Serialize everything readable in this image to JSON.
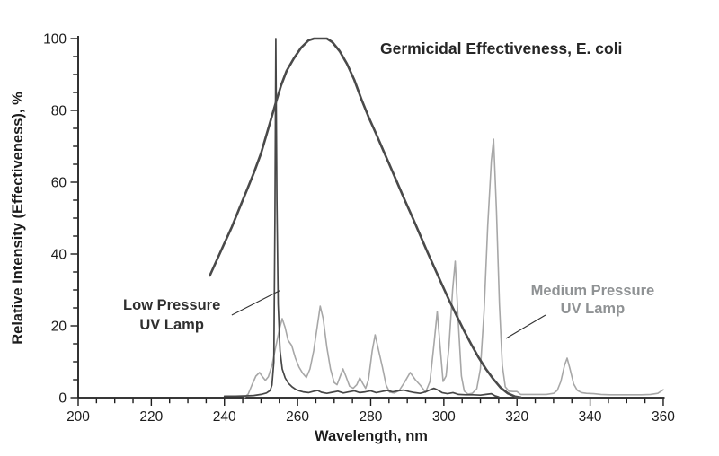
{
  "chart_data": {
    "type": "line",
    "title": "Germicidal Effectiveness, E. coli",
    "xlabel": "Wavelength, nm",
    "ylabel": "Relative Intensity (Effectiveness), %",
    "xlim": [
      200,
      360
    ],
    "ylim": [
      0,
      100
    ],
    "x_major_ticks": [
      200,
      220,
      240,
      260,
      280,
      300,
      320,
      340,
      360
    ],
    "x_minor_step": 5,
    "y_major_ticks": [
      0,
      20,
      40,
      60,
      80,
      100
    ],
    "y_minor_step": 5,
    "grid": false,
    "legend_position": "inline-annotations",
    "axis_color": "#1c1c1c",
    "series": [
      {
        "key": "medium-pressure-lamp",
        "name": "Medium Pressure UV Lamp",
        "color": "#a7a7a7",
        "stroke_width": 1.6,
        "points": [
          [
            245.5,
            0.1
          ],
          [
            246.5,
            1
          ],
          [
            247.5,
            3.5
          ],
          [
            248.6,
            6
          ],
          [
            249.6,
            7
          ],
          [
            250.4,
            5.8
          ],
          [
            251.2,
            4.8
          ],
          [
            252,
            5.8
          ],
          [
            253,
            9
          ],
          [
            254,
            14
          ],
          [
            255,
            19
          ],
          [
            255.8,
            22
          ],
          [
            256.6,
            19.5
          ],
          [
            257.4,
            16
          ],
          [
            258.4,
            14.5
          ],
          [
            259.4,
            11
          ],
          [
            260.4,
            8.5
          ],
          [
            261.4,
            6.8
          ],
          [
            262.4,
            5.6
          ],
          [
            263.4,
            8
          ],
          [
            264.4,
            13
          ],
          [
            265.4,
            20
          ],
          [
            266.2,
            25.5
          ],
          [
            267,
            22
          ],
          [
            268,
            14
          ],
          [
            269,
            8
          ],
          [
            270,
            4.2
          ],
          [
            270.8,
            3.6
          ],
          [
            271.6,
            5.8
          ],
          [
            272.4,
            8
          ],
          [
            273.2,
            6
          ],
          [
            274.2,
            3.2
          ],
          [
            275.2,
            2.6
          ],
          [
            276.2,
            3.6
          ],
          [
            277,
            5.5
          ],
          [
            277.8,
            4
          ],
          [
            278.6,
            2.6
          ],
          [
            279.4,
            5
          ],
          [
            280.4,
            13
          ],
          [
            281.2,
            17.5
          ],
          [
            282.2,
            13
          ],
          [
            283.2,
            8.5
          ],
          [
            284.2,
            3.5
          ],
          [
            285.2,
            1.5
          ],
          [
            286.5,
            1.3
          ],
          [
            287.8,
            2
          ],
          [
            289.2,
            4.2
          ],
          [
            290.8,
            7
          ],
          [
            292.2,
            5
          ],
          [
            293.6,
            3.4
          ],
          [
            295,
            1.5
          ],
          [
            296.2,
            4.5
          ],
          [
            297.3,
            15
          ],
          [
            298.2,
            24
          ],
          [
            299,
            14
          ],
          [
            299.8,
            4.5
          ],
          [
            300.6,
            6
          ],
          [
            301.4,
            14
          ],
          [
            302.4,
            30
          ],
          [
            303.1,
            38
          ],
          [
            303.9,
            22
          ],
          [
            304.8,
            6
          ],
          [
            305.6,
            1.8
          ],
          [
            306.6,
            1
          ],
          [
            307.8,
            1.2
          ],
          [
            309,
            2.5
          ],
          [
            310,
            8
          ],
          [
            311,
            24
          ],
          [
            312,
            48
          ],
          [
            313,
            66
          ],
          [
            313.6,
            72
          ],
          [
            314.4,
            52
          ],
          [
            315.2,
            26
          ],
          [
            316,
            9
          ],
          [
            316.8,
            3
          ],
          [
            317.8,
            1.8
          ],
          [
            319,
            1.7
          ],
          [
            320,
            1.7
          ],
          [
            321,
            0.9
          ],
          [
            322.5,
            0.9
          ],
          [
            324,
            0.9
          ],
          [
            326,
            0.9
          ],
          [
            328,
            0.9
          ],
          [
            330,
            1.2
          ],
          [
            331,
            2
          ],
          [
            332,
            4.5
          ],
          [
            333,
            9
          ],
          [
            333.7,
            11
          ],
          [
            334.5,
            8
          ],
          [
            335.5,
            3.8
          ],
          [
            336.5,
            2
          ],
          [
            337.7,
            1.4
          ],
          [
            339,
            1.2
          ],
          [
            341,
            1.1
          ],
          [
            343,
            0.9
          ],
          [
            345.5,
            0.8
          ],
          [
            348,
            0.8
          ],
          [
            351,
            0.8
          ],
          [
            354,
            0.8
          ],
          [
            356.5,
            0.9
          ],
          [
            358.5,
            1.2
          ],
          [
            360,
            2.2
          ]
        ]
      },
      {
        "key": "low-pressure-lamp",
        "name": "Low Pressure UV Lamp",
        "color": "#474747",
        "stroke_width": 1.7,
        "points": [
          [
            240,
            0.4
          ],
          [
            243,
            0.4
          ],
          [
            246,
            0.5
          ],
          [
            248,
            0.6
          ],
          [
            250,
            0.9
          ],
          [
            251.5,
            1.3
          ],
          [
            252.5,
            2
          ],
          [
            253,
            3.5
          ],
          [
            253.5,
            10
          ],
          [
            253.8,
            50
          ],
          [
            254.05,
            100
          ],
          [
            254.35,
            55
          ],
          [
            254.7,
            26
          ],
          [
            255.2,
            13
          ],
          [
            255.8,
            8
          ],
          [
            256.6,
            5.5
          ],
          [
            257.5,
            4
          ],
          [
            258.5,
            3
          ],
          [
            259.5,
            2.3
          ],
          [
            260.5,
            1.9
          ],
          [
            261.5,
            1.6
          ],
          [
            263,
            1.4
          ],
          [
            264.5,
            1.8
          ],
          [
            265.5,
            2
          ],
          [
            266.5,
            1.5
          ],
          [
            268,
            1.2
          ],
          [
            269.5,
            1.5
          ],
          [
            271,
            1.8
          ],
          [
            272.5,
            1.3
          ],
          [
            274,
            1.6
          ],
          [
            275.5,
            1.9
          ],
          [
            277,
            1.4
          ],
          [
            278.5,
            1.6
          ],
          [
            280,
            1.9
          ],
          [
            281.5,
            1.4
          ],
          [
            283,
            1.7
          ],
          [
            284.5,
            2
          ],
          [
            286,
            1.6
          ],
          [
            287.5,
            1.9
          ],
          [
            289,
            2.1
          ],
          [
            290.5,
            1.7
          ],
          [
            292,
            1.4
          ],
          [
            293.5,
            1.2
          ],
          [
            295,
            1.6
          ],
          [
            296.5,
            2.3
          ],
          [
            297.3,
            2.6
          ],
          [
            298.2,
            2.2
          ],
          [
            299.5,
            1.4
          ],
          [
            301,
            1.1
          ],
          [
            302.5,
            1.4
          ],
          [
            304,
            0.9
          ],
          [
            306,
            0.8
          ],
          [
            308,
            0.8
          ],
          [
            310,
            0.7
          ],
          [
            311.5,
            0.9
          ],
          [
            313,
            1.1
          ],
          [
            314,
            0.5
          ],
          [
            315,
            0.2
          ]
        ]
      },
      {
        "key": "germicidal",
        "name": "Germicidal Effectiveness, E. coli",
        "color": "#4a4a4a",
        "stroke_width": 2.6,
        "points": [
          [
            236,
            34
          ],
          [
            238,
            38.5
          ],
          [
            240,
            43
          ],
          [
            242,
            47.5
          ],
          [
            244,
            52.5
          ],
          [
            246,
            57.5
          ],
          [
            248,
            62.5
          ],
          [
            250,
            68
          ],
          [
            252,
            75
          ],
          [
            254,
            82
          ],
          [
            255.5,
            87
          ],
          [
            257,
            91
          ],
          [
            259,
            94.5
          ],
          [
            261,
            97.5
          ],
          [
            263,
            99.5
          ],
          [
            264.5,
            100
          ],
          [
            268,
            100
          ],
          [
            269.5,
            99
          ],
          [
            271.5,
            96.5
          ],
          [
            273.5,
            93
          ],
          [
            275.5,
            88.5
          ],
          [
            277.5,
            83
          ],
          [
            279.5,
            78
          ],
          [
            281.5,
            73.4
          ],
          [
            283.5,
            68.7
          ],
          [
            285.5,
            64
          ],
          [
            287.5,
            59.3
          ],
          [
            289.5,
            54.6
          ],
          [
            291.5,
            50
          ],
          [
            293.5,
            45.3
          ],
          [
            295.5,
            40.6
          ],
          [
            297.5,
            36
          ],
          [
            299.5,
            31.5
          ],
          [
            301.5,
            27
          ],
          [
            303.5,
            22.8
          ],
          [
            305.5,
            18.7
          ],
          [
            307.5,
            14.8
          ],
          [
            309.5,
            11.2
          ],
          [
            311.5,
            8
          ],
          [
            313.5,
            5.2
          ],
          [
            315.5,
            2.8
          ],
          [
            317.5,
            1.2
          ],
          [
            319.5,
            0.3
          ],
          [
            321,
            0.05
          ]
        ]
      }
    ],
    "annotations": [
      {
        "key": "low-pressure-label",
        "lines": [
          "Low Pressure",
          "UV Lamp"
        ],
        "color": "#2f2f2f",
        "anchor_nm": 225.6,
        "line_pcts": [
          24.5,
          19.0
        ],
        "leader": {
          "from": [
            242.0,
            23.0
          ],
          "to": [
            255.1,
            29.8
          ],
          "color": "#333333"
        }
      },
      {
        "key": "medium-pressure-label",
        "lines": [
          "Medium Pressure",
          "UV Lamp"
        ],
        "color": "#8f9294",
        "anchor_nm": 340.7,
        "line_pcts": [
          28.5,
          23.5
        ],
        "leader": {
          "from": [
            327.8,
            23.0
          ],
          "to": [
            317.0,
            16.5
          ],
          "color": "#333333"
        }
      }
    ]
  }
}
